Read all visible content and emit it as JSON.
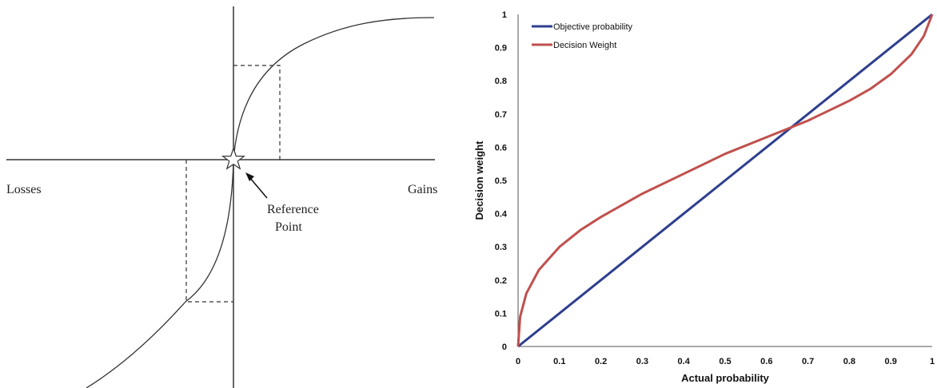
{
  "value_function": {
    "labels": {
      "losses": "Losses",
      "gains": "Gains",
      "reference_line1": "Reference",
      "reference_line2": "Point"
    }
  },
  "chart_data": {
    "type": "line",
    "title": "",
    "xlabel": "Actual probability",
    "ylabel": "Decision weight",
    "xlim": [
      0,
      1
    ],
    "ylim": [
      0,
      1
    ],
    "xticks": [
      "0",
      "0.1",
      "0.2",
      "0.3",
      "0.4",
      "0.5",
      "0.6",
      "0.7",
      "0.8",
      "0.9",
      "1"
    ],
    "yticks": [
      "0",
      "0.1",
      "0.2",
      "0.3",
      "0.4",
      "0.5",
      "0.6",
      "0.7",
      "0.8",
      "0.9",
      "1"
    ],
    "grid": false,
    "legend": "top-left",
    "series": [
      {
        "name": "Objective probability",
        "color": "#2e3f8f",
        "x": [
          0,
          0.1,
          0.2,
          0.3,
          0.4,
          0.5,
          0.6,
          0.7,
          0.8,
          0.9,
          1
        ],
        "y": [
          0,
          0.1,
          0.2,
          0.3,
          0.4,
          0.5,
          0.6,
          0.7,
          0.8,
          0.9,
          1
        ]
      },
      {
        "name": "Decision Weight",
        "color": "#c0504d",
        "x": [
          0,
          0.005,
          0.02,
          0.05,
          0.1,
          0.15,
          0.2,
          0.3,
          0.4,
          0.5,
          0.6,
          0.65,
          0.7,
          0.8,
          0.85,
          0.9,
          0.95,
          0.98,
          1
        ],
        "y": [
          0,
          0.09,
          0.16,
          0.23,
          0.3,
          0.35,
          0.39,
          0.46,
          0.52,
          0.58,
          0.63,
          0.655,
          0.68,
          0.74,
          0.775,
          0.82,
          0.88,
          0.935,
          1
        ]
      }
    ]
  }
}
